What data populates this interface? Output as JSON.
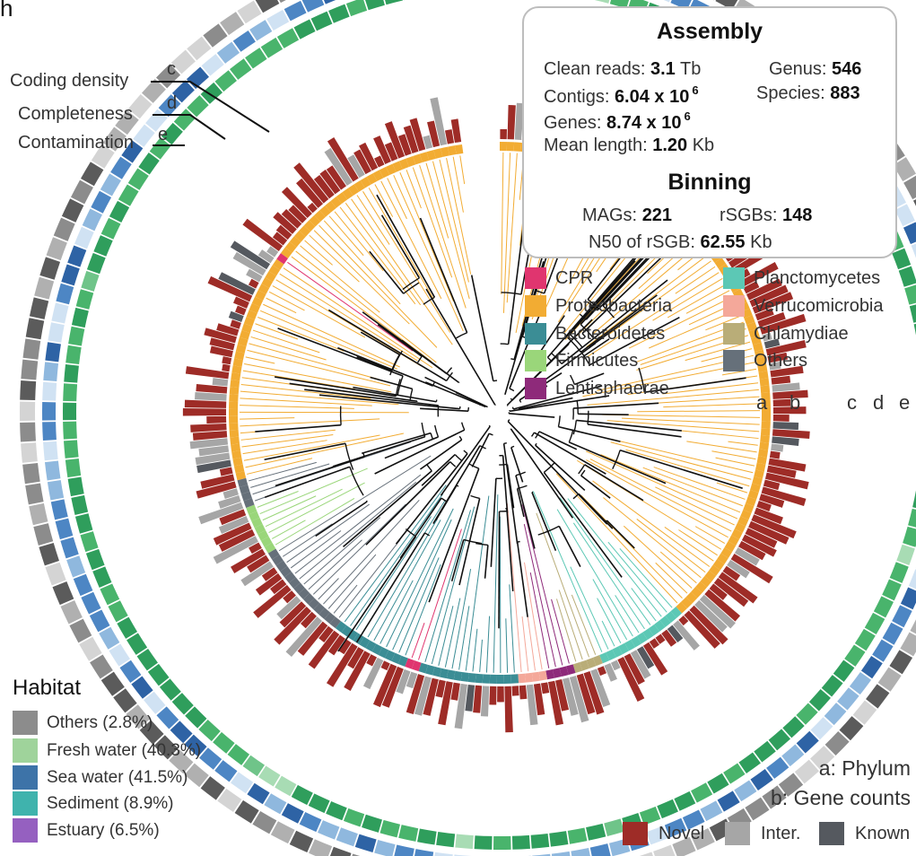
{
  "panel_letter": "h",
  "ring_labels": {
    "coding_density": {
      "text": "Coding density",
      "key": "c"
    },
    "completeness": {
      "text": "Completeness",
      "key": "d"
    },
    "contamination": {
      "text": "Contamination",
      "key": "e"
    }
  },
  "ring_keys": [
    "a",
    "b",
    "c",
    "d",
    "e"
  ],
  "assembly": {
    "title": "Assembly",
    "clean_reads_label": "Clean reads:",
    "clean_reads_value": "3.1",
    "clean_reads_unit": "Tb",
    "genus_label": "Genus:",
    "genus_value": "546",
    "contigs_label": "Contigs:",
    "contigs_value": "6.04 x 10",
    "contigs_exp": "6",
    "species_label": "Species:",
    "species_value": "883",
    "genes_label": "Genes:",
    "genes_value": "8.74 x 10",
    "genes_exp": "6",
    "mean_length_label": "Mean length:",
    "mean_length_value": "1.20",
    "mean_length_unit": "Kb"
  },
  "binning": {
    "title": "Binning",
    "mags_label": "MAGs:",
    "mags_value": "221",
    "rsgbs_label": "rSGBs:",
    "rsgbs_value": "148",
    "n50_label": "N50 of rSGB:",
    "n50_value": "62.55",
    "n50_unit": "Kb"
  },
  "phylum_legend": [
    {
      "name": "CPR",
      "color": "#e0356f"
    },
    {
      "name": "Proteobacteria",
      "color": "#f2ac33"
    },
    {
      "name": "Bacteroidetes",
      "color": "#3b8d95"
    },
    {
      "name": "Firmicutes",
      "color": "#9ad67a"
    },
    {
      "name": "Lentisphaerae",
      "color": "#8e2a7a"
    },
    {
      "name": "Planctomycetes",
      "color": "#5cc8b5"
    },
    {
      "name": "Verrucomicrobia",
      "color": "#f4a89a"
    },
    {
      "name": "Chlamydiae",
      "color": "#b9ad78"
    },
    {
      "name": "Others",
      "color": "#66707a"
    }
  ],
  "habitat": {
    "title": "Habitat",
    "items": [
      {
        "label": "Others (2.8%)",
        "color": "#8c8c8c"
      },
      {
        "label": "Fresh water (40.3%)",
        "color": "#9fd39b"
      },
      {
        "label": "Sea water (41.5%)",
        "color": "#3d73a8"
      },
      {
        "label": "Sediment (8.9%)",
        "color": "#3fb3ad"
      },
      {
        "label": "Estuary (6.5%)",
        "color": "#9560c0"
      }
    ]
  },
  "bottom_legend": {
    "phylum_key": "a: Phylum",
    "gene_key": "b: Gene counts",
    "novel": {
      "label": "Novel",
      "color": "#9e2c27"
    },
    "inter": {
      "label": "Inter.",
      "color": "#a6a6a6"
    },
    "known": {
      "label": "Known",
      "color": "#55595f"
    }
  },
  "ring_colors": {
    "coding_density": [
      "#2f9e5c",
      "#49b46c",
      "#6fc489",
      "#a8dcb4"
    ],
    "completeness": [
      "#2e63a5",
      "#4d86c4",
      "#8fb8de",
      "#d0e2f3"
    ],
    "contamination": [
      "#5b5b5b",
      "#8c8c8c",
      "#b0b0b0",
      "#d4d4d4"
    ]
  }
}
